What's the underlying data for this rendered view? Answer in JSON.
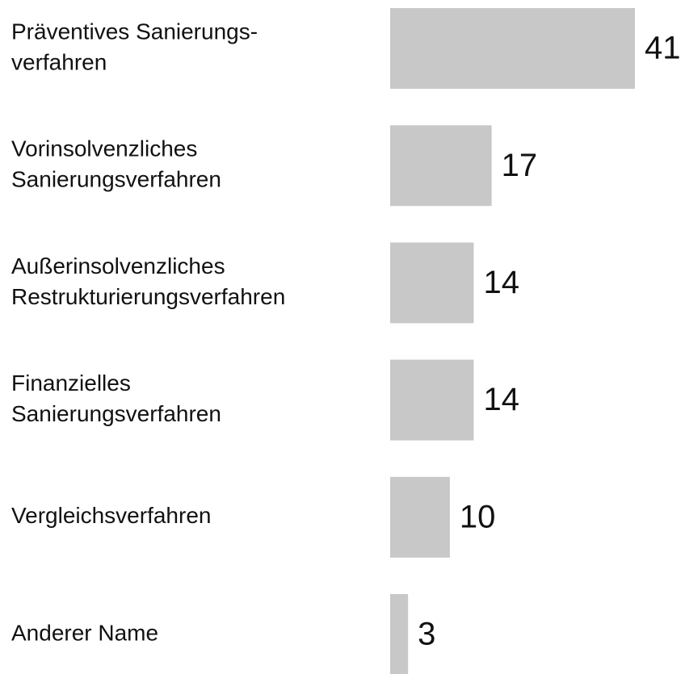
{
  "chart_data": {
    "type": "bar",
    "categories": [
      [
        "Präventives Sanierungs-",
        "verfahren"
      ],
      [
        "Vorinsolvenzliches",
        "Sanierungsverfahren"
      ],
      [
        "Außerinsolvenzliches",
        "Restrukturierungsverfahren"
      ],
      [
        "Finanzielles",
        "Sanierungsverfahren"
      ],
      [
        "Vergleichsverfahren"
      ],
      [
        "Anderer Name"
      ]
    ],
    "values": [
      41,
      17,
      14,
      14,
      10,
      3
    ],
    "color": "#c8c8c8"
  }
}
